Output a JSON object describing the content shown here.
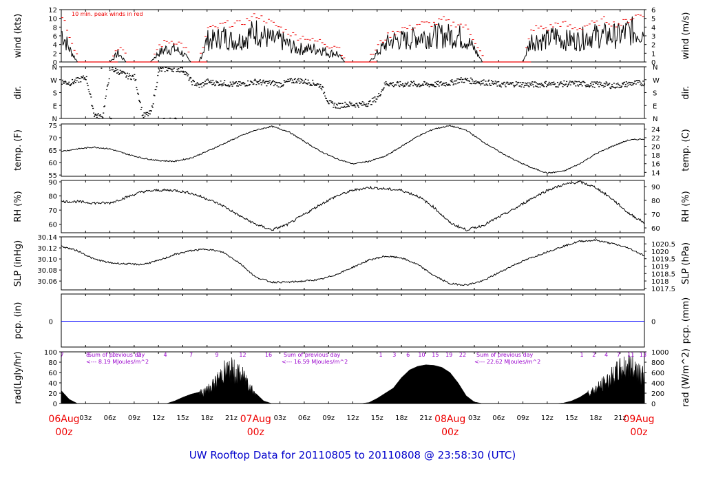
{
  "title": "UW Rooftop Data for 20110805  to  20110808 @ 23:58:30  (UTC)",
  "colors": {
    "title": "#0000cc",
    "red": "#ee0000",
    "purple": "#9900cc",
    "blue": "#0000ff",
    "line": "#000000"
  },
  "x_axis": {
    "hour_ticks": [
      "03z",
      "06z",
      "09z",
      "12z",
      "15z",
      "18z",
      "21z",
      "03z",
      "06z",
      "09z",
      "12z",
      "15z",
      "18z",
      "21z",
      "03z",
      "06z",
      "09z",
      "12z",
      "15z",
      "18z",
      "21z"
    ],
    "hour_values": [
      3,
      6,
      9,
      12,
      15,
      18,
      21,
      27,
      30,
      33,
      36,
      39,
      42,
      45,
      51,
      54,
      57,
      60,
      63,
      66,
      69
    ],
    "day_ticks": [
      {
        "day": "06Aug",
        "hour": "00z",
        "at": 0
      },
      {
        "day": "07Aug",
        "hour": "00z",
        "at": 24
      },
      {
        "day": "08Aug",
        "hour": "00z",
        "at": 48
      },
      {
        "day": "09Aug",
        "hour": "00z",
        "at": 72
      }
    ]
  },
  "chart_data": [
    {
      "type": "line",
      "panel": "wind",
      "ylabel_left": "wind (kts)",
      "ylabel_right": "wind (m/s)",
      "ylim": [
        0,
        12
      ],
      "yticks": [
        0,
        2,
        4,
        6,
        8,
        10,
        12
      ],
      "right_ylim": [
        0,
        6
      ],
      "right_yticks": [
        0,
        1,
        2,
        3,
        4,
        5,
        6
      ],
      "annotation": "10 min. peak winds in red",
      "x": [
        0,
        1,
        2,
        3,
        4,
        5,
        6,
        7,
        8,
        9,
        10,
        11,
        12,
        13,
        14,
        15,
        16,
        17,
        18,
        19,
        20,
        21,
        22,
        23,
        24,
        25,
        26,
        27,
        28,
        29,
        30,
        31,
        32,
        33,
        34,
        35,
        36,
        37,
        38,
        39,
        40,
        41,
        42,
        43,
        44,
        45,
        46,
        47,
        48,
        49,
        50,
        51,
        52,
        53,
        54,
        55,
        56,
        57,
        58,
        59,
        60,
        61,
        62,
        63,
        64,
        65,
        66,
        67,
        68,
        69,
        70,
        71,
        72
      ],
      "series": [
        {
          "values": [
            7,
            3,
            0,
            0,
            0,
            0,
            0,
            2,
            0,
            0,
            0,
            0,
            2,
            3,
            3,
            2,
            0,
            0,
            5,
            5,
            6,
            5,
            5,
            6,
            7,
            6,
            5,
            5,
            4,
            3,
            3,
            3,
            3,
            2,
            2,
            0,
            0,
            0,
            0,
            2,
            4,
            5,
            5,
            5,
            6,
            6,
            6,
            6,
            6,
            6,
            5,
            3,
            0,
            0,
            0,
            0,
            0,
            0,
            5,
            5,
            5,
            6,
            5,
            5,
            5,
            6,
            6,
            6,
            6,
            6,
            7,
            7,
            7
          ]
        },
        {
          "values": [
            10,
            5,
            0,
            0,
            0,
            0,
            0,
            3,
            0,
            0,
            0,
            0,
            3,
            4,
            4,
            3,
            0,
            0,
            7,
            7,
            8,
            8,
            8,
            9,
            10,
            9,
            8,
            7,
            6,
            5,
            5,
            4,
            4,
            3,
            3,
            0,
            0,
            0,
            0,
            3,
            5,
            6,
            7,
            7,
            8,
            8,
            8,
            9,
            8,
            8,
            7,
            4,
            0,
            0,
            0,
            0,
            0,
            0,
            7,
            7,
            7,
            8,
            8,
            7,
            7,
            8,
            8,
            9,
            8,
            8,
            9,
            10,
            10
          ]
        }
      ]
    },
    {
      "type": "scatter",
      "panel": "dir",
      "ylabel_left": "dir.",
      "ylabel_right": "dir.",
      "yticks_labels": [
        "N",
        "E",
        "S",
        "W",
        "N"
      ],
      "ylim": [
        0,
        360
      ],
      "x": [
        0,
        1,
        2,
        3,
        4,
        5,
        6,
        7,
        8,
        9,
        10,
        11,
        12,
        13,
        14,
        15,
        16,
        17,
        18,
        19,
        20,
        21,
        22,
        23,
        24,
        25,
        26,
        27,
        28,
        29,
        30,
        31,
        32,
        33,
        34,
        35,
        36,
        37,
        38,
        39,
        40,
        41,
        42,
        43,
        44,
        45,
        46,
        47,
        48,
        49,
        50,
        51,
        52,
        53,
        54,
        55,
        56,
        57,
        58,
        59,
        60,
        61,
        62,
        63,
        64,
        65,
        66,
        67,
        68,
        69,
        70,
        71,
        72
      ],
      "values": [
        260,
        250,
        270,
        290,
        30,
        10,
        350,
        330,
        300,
        290,
        20,
        40,
        340,
        350,
        350,
        340,
        260,
        230,
        260,
        250,
        250,
        240,
        240,
        250,
        260,
        250,
        250,
        240,
        260,
        270,
        260,
        250,
        230,
        110,
        90,
        100,
        100,
        100,
        110,
        150,
        250,
        240,
        240,
        245,
        240,
        240,
        240,
        245,
        250,
        270,
        270,
        260,
        255,
        250,
        240,
        240,
        245,
        240,
        240,
        240,
        245,
        240,
        245,
        245,
        245,
        240,
        240,
        240,
        230,
        235,
        245,
        250,
        250
      ]
    },
    {
      "type": "line",
      "panel": "temp",
      "ylabel_left": "temp. (F)",
      "ylabel_right": "temp. (C)",
      "ylim": [
        54.5,
        75.5
      ],
      "yticks": [
        55,
        60,
        65,
        70,
        75
      ],
      "right_yticks": [
        14,
        16,
        18,
        20,
        22,
        24
      ],
      "x": [
        0,
        2,
        4,
        6,
        8,
        10,
        12,
        14,
        16,
        18,
        20,
        22,
        24,
        26,
        28,
        30,
        32,
        34,
        36,
        38,
        40,
        42,
        44,
        46,
        48,
        50,
        52,
        54,
        56,
        58,
        60,
        62,
        64,
        66,
        68,
        70,
        72
      ],
      "values": [
        64.5,
        65.5,
        66.2,
        65.5,
        63.5,
        61.8,
        60.8,
        60.5,
        61.8,
        64.5,
        67.5,
        70.5,
        73,
        74.5,
        72.5,
        68.5,
        64.5,
        61.5,
        59.5,
        60.5,
        62.5,
        66.5,
        70.5,
        73.5,
        74.8,
        73,
        68.5,
        64.5,
        61,
        58,
        55.8,
        56.5,
        59.5,
        63.5,
        66.5,
        69,
        69.5
      ]
    },
    {
      "type": "line",
      "panel": "rh",
      "ylabel_left": "RH (%)",
      "ylabel_right": "RH (%)",
      "ylim": [
        54,
        91
      ],
      "yticks": [
        60,
        70,
        80,
        90
      ],
      "right_yticks": [
        60,
        70,
        80,
        90
      ],
      "x": [
        0,
        2,
        4,
        6,
        8,
        10,
        12,
        14,
        16,
        18,
        20,
        22,
        24,
        26,
        28,
        30,
        32,
        34,
        36,
        38,
        40,
        42,
        44,
        46,
        48,
        50,
        52,
        54,
        56,
        58,
        60,
        62,
        64,
        66,
        68,
        70,
        72
      ],
      "values": [
        76,
        76,
        75,
        75,
        79,
        83,
        84,
        84,
        82,
        78,
        73,
        66,
        60,
        56,
        60,
        67,
        74,
        80,
        84,
        86,
        85,
        84,
        80,
        72,
        61,
        56,
        59,
        65,
        71,
        78,
        84,
        88,
        90,
        86,
        78,
        68,
        61
      ]
    },
    {
      "type": "line",
      "panel": "slp",
      "ylabel_left": "SLP (inHg)",
      "ylabel_right": "SLP (hPa)",
      "ylim": [
        30.044,
        30.14
      ],
      "yticks": [
        30.06,
        30.08,
        30.1,
        30.12,
        30.14
      ],
      "right_yticks": [
        1017.5,
        1018,
        1018.5,
        1019,
        1019.5,
        1020,
        1020.5
      ],
      "x": [
        0,
        2,
        4,
        6,
        8,
        10,
        12,
        14,
        16,
        18,
        20,
        22,
        24,
        26,
        28,
        30,
        32,
        34,
        36,
        38,
        40,
        42,
        44,
        46,
        48,
        50,
        52,
        54,
        56,
        58,
        60,
        62,
        64,
        66,
        68,
        70,
        72
      ],
      "values": [
        30.123,
        30.115,
        30.1,
        30.093,
        30.091,
        30.09,
        30.097,
        30.108,
        30.115,
        30.118,
        30.112,
        30.093,
        30.067,
        30.058,
        30.058,
        30.06,
        30.063,
        30.072,
        30.085,
        30.098,
        30.105,
        30.102,
        30.09,
        30.07,
        30.055,
        30.053,
        30.06,
        30.075,
        30.09,
        30.102,
        30.113,
        30.123,
        30.132,
        30.134,
        30.128,
        30.12,
        30.106
      ]
    },
    {
      "type": "line",
      "panel": "pcp",
      "ylabel_left": "pcp. (in)",
      "ylabel_right": "pcp. (mm)",
      "yticks": [
        0
      ],
      "right_yticks": [
        0
      ],
      "x": [
        0,
        72
      ],
      "values": [
        0,
        0
      ]
    },
    {
      "type": "area",
      "panel": "rad",
      "ylabel_left": "rad(Lgly/hr)",
      "ylabel_right": "rad (W/m^2)",
      "ylim": [
        0,
        100
      ],
      "yticks": [
        0,
        20,
        40,
        60,
        80,
        100
      ],
      "right_yticks": [
        0,
        200,
        400,
        600,
        800,
        1000
      ],
      "x": [
        0,
        1,
        2,
        3,
        4,
        5,
        6,
        7,
        8,
        9,
        10,
        11,
        12,
        13,
        14,
        15,
        16,
        17,
        18,
        19,
        20,
        21,
        22,
        23,
        24,
        25,
        26,
        27,
        28,
        29,
        30,
        31,
        32,
        33,
        34,
        35,
        36,
        37,
        38,
        39,
        40,
        41,
        42,
        43,
        44,
        45,
        46,
        47,
        48,
        49,
        50,
        51,
        52,
        53,
        54,
        55,
        56,
        57,
        58,
        59,
        60,
        61,
        62,
        63,
        64,
        65,
        66,
        67,
        68,
        69,
        70,
        71,
        72
      ],
      "values": [
        25,
        8,
        0,
        0,
        0,
        0,
        0,
        0,
        0,
        0,
        0,
        0,
        0,
        0,
        5,
        12,
        18,
        22,
        30,
        45,
        70,
        75,
        65,
        50,
        20,
        5,
        0,
        0,
        0,
        0,
        0,
        0,
        0,
        0,
        0,
        0,
        0,
        0,
        2,
        10,
        20,
        30,
        50,
        65,
        72,
        75,
        74,
        70,
        60,
        40,
        15,
        3,
        0,
        0,
        0,
        0,
        0,
        0,
        0,
        0,
        0,
        0,
        1,
        5,
        12,
        22,
        32,
        45,
        60,
        75,
        85,
        80,
        60
      ],
      "hour_marks_day1": [
        "7",
        "8",
        "1",
        "2",
        "4",
        "7",
        "9",
        "12",
        "16"
      ],
      "hour_marks_day2": [
        "1",
        "3",
        "6",
        "10",
        "15",
        "19",
        "22"
      ],
      "hour_marks_day3": [
        "1",
        "2",
        "4",
        "7",
        "11",
        "13"
      ],
      "sums": [
        {
          "label": "Sum of previous day",
          "value": "<--- 8.19 MJoules/m^2"
        },
        {
          "label": "Sum of previous day",
          "value": "<--- 16.59 MJoules/m^2"
        },
        {
          "label": "Sum of previous day",
          "value": "<--- 22.62 MJoules/m^2"
        }
      ]
    }
  ]
}
